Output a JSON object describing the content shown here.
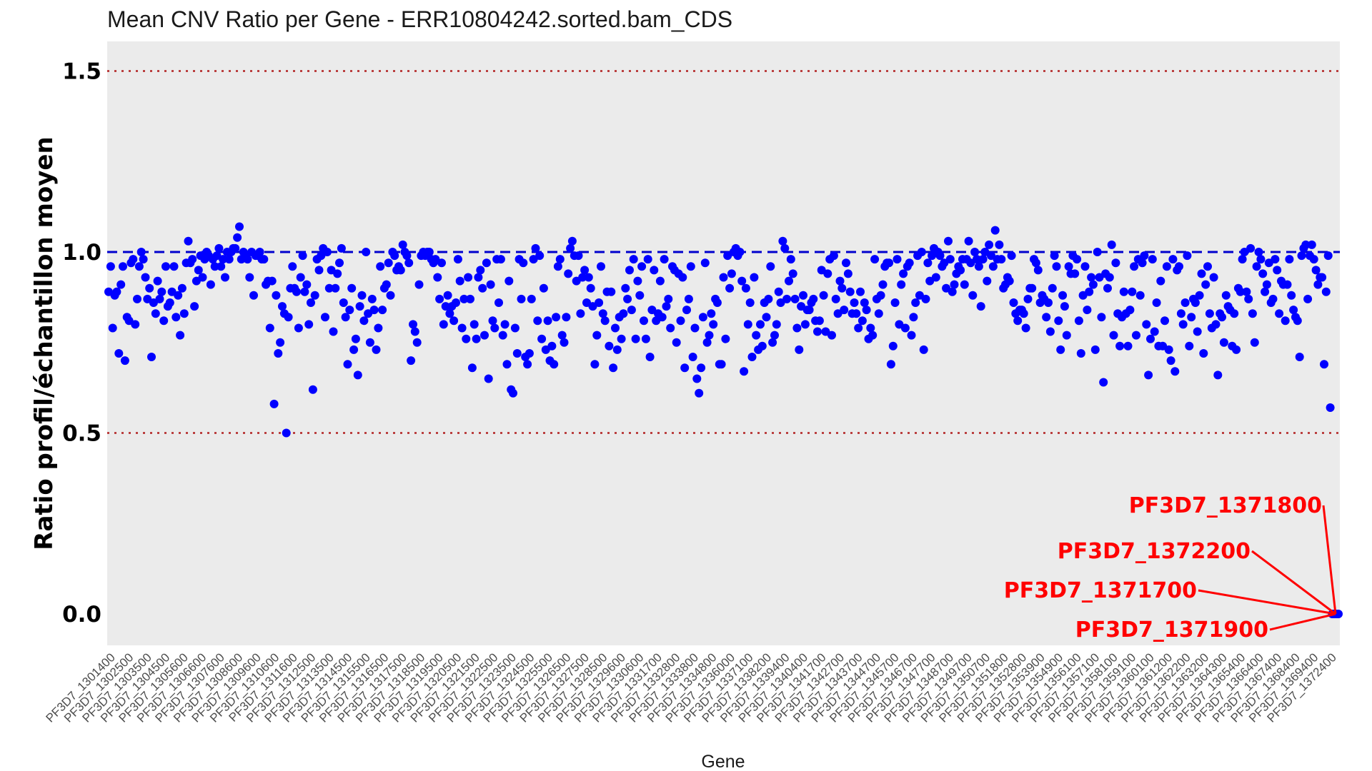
{
  "chart_data": {
    "type": "scatter",
    "title": "Mean CNV Ratio per Gene - ERR10804242.sorted.bam_CDS",
    "xlabel": "Gene",
    "ylabel": "Ratio profil/échantillon moyen",
    "ylim": [
      -0.1,
      1.58
    ],
    "yticks": [
      "0.0",
      "0.5",
      "1.0",
      "1.5"
    ],
    "ytick_values": [
      0.0,
      0.5,
      1.0,
      1.5
    ],
    "grid": false,
    "reference_lines": [
      {
        "y": 1.5,
        "style": "dotted",
        "color": "#b22222"
      },
      {
        "y": 1.0,
        "style": "dashed",
        "color": "#0000cd"
      },
      {
        "y": 0.5,
        "style": "dotted",
        "color": "#b22222"
      }
    ],
    "x_tick_labels": [
      "PF3D7_1301400",
      "PF3D7_1302500",
      "PF3D7_1303500",
      "PF3D7_1304500",
      "PF3D7_1305600",
      "PF3D7_1306600",
      "PF3D7_1307600",
      "PF3D7_1308600",
      "PF3D7_1309600",
      "PF3D7_1310600",
      "PF3D7_1311600",
      "PF3D7_1312500",
      "PF3D7_1313500",
      "PF3D7_1314500",
      "PF3D7_1315500",
      "PF3D7_1316500",
      "PF3D7_1317500",
      "PF3D7_1318500",
      "PF3D7_1319500",
      "PF3D7_1320500",
      "PF3D7_1321500",
      "PF3D7_1322500",
      "PF3D7_1323500",
      "PF3D7_1324500",
      "PF3D7_1325500",
      "PF3D7_1326500",
      "PF3D7_1327500",
      "PF3D7_1328500",
      "PF3D7_1329600",
      "PF3D7_1330600",
      "PF3D7_1331700",
      "PF3D7_1332800",
      "PF3D7_1333800",
      "PF3D7_1334800",
      "PF3D7_1336000",
      "PF3D7_1337100",
      "PF3D7_1338200",
      "PF3D7_1339400",
      "PF3D7_1340400",
      "PF3D7_1341700",
      "PF3D7_1342700",
      "PF3D7_1343700",
      "PF3D7_1344700",
      "PF3D7_1345700",
      "PF3D7_1346700",
      "PF3D7_1347700",
      "PF3D7_1348700",
      "PF3D7_1349700",
      "PF3D7_1350700",
      "PF3D7_1351800",
      "PF3D7_1352800",
      "PF3D7_1353900",
      "PF3D7_1354900",
      "PF3D7_1356100",
      "PF3D7_1357100",
      "PF3D7_1358100",
      "PF3D7_1359100",
      "PF3D7_1360100",
      "PF3D7_1361200",
      "PF3D7_1362200",
      "PF3D7_1363200",
      "PF3D7_1364300",
      "PF3D7_1365400",
      "PF3D7_1366400",
      "PF3D7_1367400",
      "PF3D7_1368400",
      "PF3D7_1369400",
      "PF3D7_1372400"
    ],
    "series": [
      {
        "color": "#0000ff",
        "values": [
          0.89,
          0.96,
          0.79,
          0.88,
          0.89,
          0.72,
          0.91,
          0.96,
          0.7,
          0.82,
          0.81,
          0.97,
          0.98,
          0.8,
          0.87,
          0.96,
          1.0,
          0.98,
          0.93,
          0.87,
          0.9,
          0.71,
          0.86,
          0.83,
          0.92,
          0.87,
          0.89,
          0.81,
          0.96,
          0.85,
          0.86,
          0.89,
          0.96,
          0.82,
          0.88,
          0.77,
          0.9,
          0.83,
          0.97,
          1.03,
          0.97,
          0.98,
          0.85,
          0.92,
          0.95,
          0.99,
          0.93,
          0.98,
          1.0,
          0.99,
          0.91,
          0.98,
          0.96,
          0.99,
          1.01,
          0.96,
          0.98,
          0.93,
          1.0,
          0.98,
          1.0,
          1.01,
          1.01,
          1.04,
          1.07,
          0.98,
          1.0,
          0.99,
          0.98,
          0.93,
          1.0,
          0.88,
          0.99,
          0.99,
          1.0,
          0.98,
          0.98,
          0.91,
          0.92,
          0.79,
          0.92,
          0.58,
          0.88,
          0.72,
          0.75,
          0.85,
          0.83,
          0.5,
          0.82,
          0.9,
          0.96,
          0.9,
          0.89,
          0.79,
          0.93,
          0.99,
          0.89,
          0.91,
          0.8,
          0.86,
          0.62,
          0.88,
          0.98,
          0.95,
          0.99,
          1.01,
          0.82,
          1.0,
          0.9,
          0.95,
          0.78,
          0.9,
          0.94,
          0.97,
          1.01,
          0.86,
          0.82,
          0.69,
          0.84,
          0.9,
          0.73,
          0.76,
          0.66,
          0.85,
          0.88,
          0.81,
          1.0,
          0.83,
          0.75,
          0.87,
          0.84,
          0.73,
          0.79,
          0.96,
          0.84,
          0.9,
          0.91,
          0.97,
          0.88,
          1.0,
          0.99,
          0.95,
          0.96,
          0.95,
          1.02,
          1.0,
          0.99,
          0.97,
          0.7,
          0.8,
          0.78,
          0.75,
          0.91,
          0.99,
          1.0,
          0.99,
          1.0,
          1.0,
          0.98,
          0.97,
          0.98,
          0.93,
          0.87,
          0.97,
          0.8,
          0.85,
          0.88,
          0.83,
          0.85,
          0.81,
          0.86,
          0.98,
          0.92,
          0.79,
          0.87,
          0.76,
          0.93,
          0.87,
          0.68,
          0.8,
          0.76,
          0.93,
          0.95,
          0.9,
          0.77,
          0.97,
          0.65,
          0.91,
          0.81,
          0.79,
          0.98,
          0.86,
          0.98,
          0.77,
          0.8,
          0.69,
          0.92,
          0.62,
          0.61,
          0.79,
          0.72,
          0.98,
          0.87,
          0.97,
          0.71,
          0.69,
          0.72,
          0.87,
          0.98,
          1.01,
          0.81,
          0.99,
          0.76,
          0.9,
          0.73,
          0.81,
          0.7,
          0.74,
          0.69,
          0.82,
          0.96,
          0.98,
          0.77,
          0.75,
          0.82,
          0.94,
          1.01,
          1.03,
          0.99,
          0.92,
          0.99,
          0.83,
          0.93,
          0.95,
          0.86,
          0.93,
          0.9,
          0.85,
          0.69,
          0.77,
          0.86,
          0.96,
          0.83,
          0.81,
          0.89,
          0.74,
          0.89,
          0.68,
          0.79,
          0.73,
          0.82,
          0.76,
          0.83,
          0.9,
          0.87,
          0.95,
          0.84,
          0.98,
          0.76,
          0.92,
          0.88,
          0.96,
          0.81,
          0.76,
          0.98,
          0.71,
          0.84,
          0.95,
          0.81,
          0.83,
          0.92,
          0.82,
          0.98,
          0.85,
          0.87,
          0.79,
          0.96,
          0.95,
          0.75,
          0.94,
          0.81,
          0.93,
          0.68,
          0.84,
          0.87,
          0.96,
          0.71,
          0.79,
          0.65,
          0.61,
          0.68,
          0.82,
          0.97,
          0.75,
          0.77,
          0.83,
          0.8,
          0.87,
          0.86,
          0.69,
          0.69,
          0.93,
          0.76,
          0.99,
          0.9,
          0.94,
          1.0,
          1.01,
          0.99,
          1.0,
          0.92,
          0.67,
          0.9,
          0.8,
          0.86,
          0.71,
          0.93,
          0.77,
          0.73,
          0.8,
          0.74,
          0.86,
          0.82,
          0.87,
          0.96,
          0.75,
          0.77,
          0.8,
          0.89,
          0.86,
          1.03,
          1.01,
          0.87,
          0.92,
          0.98,
          0.94,
          0.87,
          0.79,
          0.73,
          0.85,
          0.88,
          0.8,
          0.84,
          0.84,
          0.86,
          0.87,
          0.81,
          0.78,
          0.81,
          0.95,
          0.88,
          0.78,
          0.94,
          0.98,
          0.77,
          0.99,
          0.87,
          0.83,
          0.92,
          0.9,
          0.84,
          0.97,
          0.94,
          0.89,
          0.83,
          0.86,
          0.83,
          0.79,
          0.89,
          0.81,
          0.86,
          0.84,
          0.76,
          0.79,
          0.77,
          0.98,
          0.87,
          0.83,
          0.88,
          0.91,
          0.96,
          0.97,
          0.97,
          0.69,
          0.74,
          0.86,
          0.98,
          0.8,
          0.91,
          0.94,
          0.79,
          0.96,
          0.97,
          0.77,
          0.82,
          0.86,
          0.99,
          0.88,
          1.0,
          0.73,
          0.87,
          0.97,
          0.92,
          0.99,
          1.01,
          0.93,
          1.0,
          0.99,
          0.96,
          0.97,
          0.9,
          1.03,
          0.98,
          0.89,
          0.91,
          0.94,
          0.96,
          0.95,
          0.98,
          0.91,
          0.98,
          1.03,
          0.97,
          0.88,
          1.0,
          0.98,
          0.96,
          0.85,
          0.98,
          1.0,
          0.92,
          1.02,
          0.99,
          0.96,
          1.06,
          0.98,
          1.02,
          0.98,
          0.9,
          0.91,
          0.93,
          0.92,
          0.99,
          0.86,
          0.83,
          0.81,
          0.84,
          0.84,
          0.83,
          0.79,
          0.87,
          0.9,
          0.9,
          0.98,
          0.97,
          0.95,
          0.86,
          0.88,
          0.87,
          0.82,
          0.86,
          0.78,
          0.9,
          0.99,
          0.96,
          0.81,
          0.73,
          0.88,
          0.85,
          0.77,
          0.96,
          0.94,
          0.99,
          0.94,
          0.98,
          0.81,
          0.72,
          0.88,
          0.96,
          0.84,
          0.89,
          0.93,
          0.91,
          0.73,
          1.0,
          0.93,
          0.82,
          0.64,
          0.94,
          0.9,
          0.93,
          1.02,
          0.77,
          0.97,
          0.83,
          0.74,
          0.82,
          0.89,
          0.83,
          0.74,
          0.84,
          0.89,
          0.96,
          0.77,
          0.98,
          0.88,
          0.97,
          0.99,
          0.8,
          0.66,
          0.76,
          0.98,
          0.78,
          0.86,
          0.74,
          0.92,
          0.74,
          0.81,
          0.96,
          0.73,
          0.7,
          0.98,
          0.67,
          0.95,
          0.96,
          0.83,
          0.8,
          0.86,
          0.99,
          0.74,
          0.82,
          0.87,
          0.86,
          0.78,
          0.88,
          0.94,
          0.72,
          0.91,
          0.96,
          0.83,
          0.79,
          0.93,
          0.8,
          0.66,
          0.83,
          0.82,
          0.75,
          0.88,
          0.85,
          0.84,
          0.74,
          0.83,
          0.73,
          0.9,
          0.89,
          0.98,
          1.0,
          0.89,
          0.87,
          1.01,
          0.83,
          0.75,
          0.96,
          1.0,
          0.98,
          0.94,
          0.89,
          0.91,
          0.97,
          0.86,
          0.87,
          0.98,
          0.95,
          0.83,
          0.92,
          0.91,
          0.81,
          0.91,
          0.98,
          0.88,
          0.84,
          0.82,
          0.81,
          0.71,
          0.99,
          1.01,
          1.02,
          0.87,
          0.99,
          1.02,
          0.98,
          0.95,
          0.91,
          0.93,
          0.93,
          0.69,
          0.89,
          0.99,
          0.57,
          0.0,
          0.0,
          0.0,
          0.0
        ]
      }
    ],
    "annotations": [
      {
        "text": "PF3D7_1371800",
        "target_y": 0.0,
        "color": "#ff0000"
      },
      {
        "text": "PF3D7_1372200",
        "target_y": 0.0,
        "color": "#ff0000"
      },
      {
        "text": "PF3D7_1371700",
        "target_y": 0.0,
        "color": "#ff0000"
      },
      {
        "text": "PF3D7_1371900",
        "target_y": 0.0,
        "color": "#ff0000"
      }
    ],
    "colors": {
      "panel_background": "#ebebeb",
      "points": "#0000ff",
      "annotation": "#ff0000",
      "threshold_lines": "#b22222",
      "mean_line": "#0000cd"
    }
  }
}
